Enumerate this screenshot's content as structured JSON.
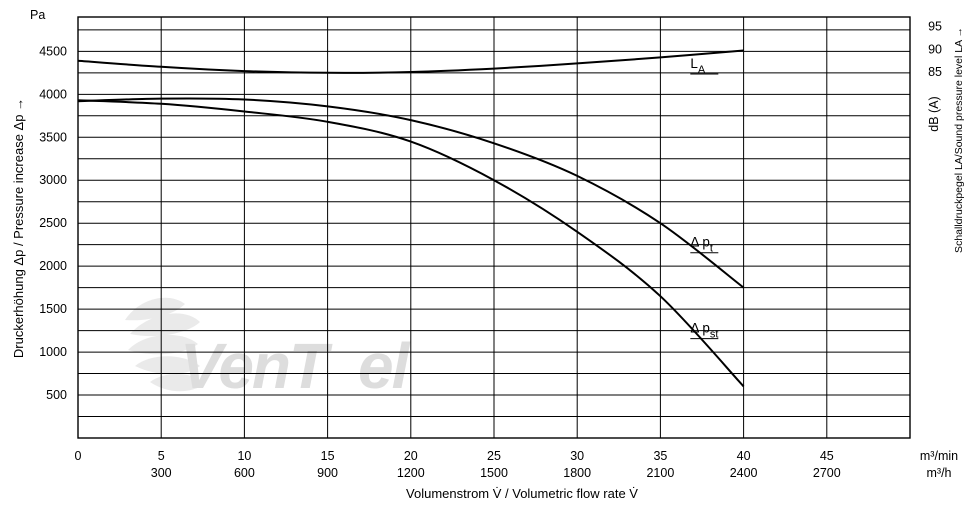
{
  "chart_data": {
    "type": "line",
    "y_unit": "Pa",
    "ylabel": "Druckerhöhung Δp / Pressure increase Δp →",
    "xlabel": "Volumenstrom V̇ / Volumetric flow rate V̇",
    "x_unit_primary": "m³/min",
    "x_unit_secondary": "m³/h",
    "y_right_label": "Schalldruckpegel LA/Sound pressure level LA →",
    "y_right_unit": "dB (A)",
    "xlim": [
      0,
      50
    ],
    "ylim": [
      0,
      4900
    ],
    "y_gridlines": [
      250,
      500,
      750,
      1000,
      1250,
      1500,
      1750,
      2000,
      2250,
      2500,
      2750,
      3000,
      3250,
      3500,
      3750,
      4000,
      4250,
      4500,
      4750
    ],
    "x_gridlines": [
      5,
      10,
      15,
      20,
      25,
      30,
      35,
      40,
      45
    ],
    "grid": true,
    "x_ticks_primary": [
      {
        "value": 0,
        "label": "0"
      },
      {
        "value": 5,
        "label": "5"
      },
      {
        "value": 10,
        "label": "10"
      },
      {
        "value": 15,
        "label": "15"
      },
      {
        "value": 20,
        "label": "20"
      },
      {
        "value": 25,
        "label": "25"
      },
      {
        "value": 30,
        "label": "30"
      },
      {
        "value": 35,
        "label": "35"
      },
      {
        "value": 40,
        "label": "40"
      },
      {
        "value": 45,
        "label": "45"
      }
    ],
    "x_ticks_secondary": [
      {
        "value": 5,
        "label": "300"
      },
      {
        "value": 10,
        "label": "600"
      },
      {
        "value": 15,
        "label": "900"
      },
      {
        "value": 20,
        "label": "1200"
      },
      {
        "value": 25,
        "label": "1500"
      },
      {
        "value": 30,
        "label": "1800"
      },
      {
        "value": 35,
        "label": "2100"
      },
      {
        "value": 40,
        "label": "2400"
      },
      {
        "value": 45,
        "label": "2700"
      }
    ],
    "y_ticks": [
      {
        "value": 500,
        "label": "500"
      },
      {
        "value": 1000,
        "label": "1000"
      },
      {
        "value": 1500,
        "label": "1500"
      },
      {
        "value": 2000,
        "label": "2000"
      },
      {
        "value": 2500,
        "label": "2500"
      },
      {
        "value": 3000,
        "label": "3000"
      },
      {
        "value": 3500,
        "label": "3500"
      },
      {
        "value": 4000,
        "label": "4000"
      },
      {
        "value": 4500,
        "label": "4500"
      }
    ],
    "right_ticks": [
      {
        "value": 4790,
        "label": "95"
      },
      {
        "value": 4520,
        "label": "90"
      },
      {
        "value": 4260,
        "label": "85"
      }
    ],
    "series": [
      {
        "name": "LA",
        "label_main": "L",
        "label_sub": "A",
        "label_at": [
          38,
          4260
        ],
        "x": [
          0,
          5,
          10,
          15,
          20,
          25,
          30,
          35,
          40
        ],
        "y": [
          4390,
          4320,
          4270,
          4250,
          4260,
          4300,
          4360,
          4430,
          4510
        ]
      },
      {
        "name": "Δpt",
        "label_main": "Δ p",
        "label_sub": "t",
        "label_at": [
          38,
          2180
        ],
        "x": [
          0,
          5,
          10,
          15,
          20,
          25,
          30,
          35,
          40
        ],
        "y": [
          3920,
          3950,
          3940,
          3860,
          3700,
          3430,
          3050,
          2500,
          1750
        ]
      },
      {
        "name": "Δpst",
        "label_main": "Δ p",
        "label_sub": "st",
        "label_at": [
          38,
          1180
        ],
        "x": [
          0,
          5,
          10,
          15,
          20,
          25,
          30,
          35,
          40
        ],
        "y": [
          3930,
          3890,
          3800,
          3680,
          3450,
          3000,
          2400,
          1650,
          600
        ]
      }
    ]
  }
}
